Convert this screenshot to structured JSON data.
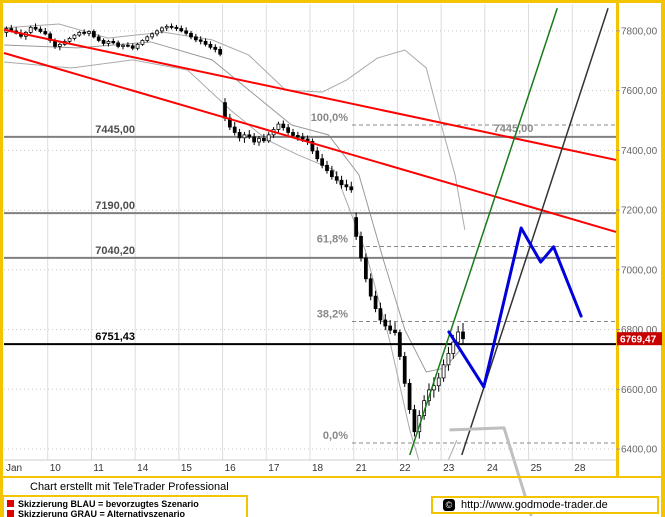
{
  "colors": {
    "frame": "#F5C400",
    "grid_v": "#DCDCDC",
    "grid_h": "#C8C8C8",
    "candle": "#000000",
    "support_gray": "#808080",
    "support_black": "#000000",
    "fib": "#888888",
    "red_trend": "#FF0000",
    "green_trend": "#1A7A1A",
    "black_trend": "#333333",
    "band": "#AAAAAA",
    "ma": "#999999",
    "scenario_blue": "#0000DD",
    "scenario_gray": "#BFBFBF",
    "badge_bg": "#C80000",
    "badge_text": "#FFFFFF",
    "axis_text": "#666666",
    "date_text": "#333333"
  },
  "chart_data": {
    "type": "candlestick",
    "title": "",
    "x_axis": {
      "labels": [
        "Jan",
        "10",
        "11",
        "14",
        "15",
        "16",
        "17",
        "18",
        "21",
        "22",
        "23",
        "24",
        "25",
        "28"
      ],
      "slots": 14
    },
    "y_axis": {
      "ticks": [
        7800,
        7600,
        7400,
        7200,
        7000,
        6800,
        6600,
        6400
      ],
      "price_top": 7870,
      "price_bottom": 6380,
      "decimal_separator": ","
    },
    "grid": true,
    "last_price": 6769.47,
    "last_price_label": "6769,47",
    "support_lines": [
      {
        "price": 7445.0,
        "label": "7445,00",
        "color_key": "support_gray",
        "width": 2,
        "extra_label": {
          "text": "7445,00",
          "x_frac": 0.8
        }
      },
      {
        "price": 7190.0,
        "label": "7190,00",
        "color_key": "support_gray",
        "width": 2
      },
      {
        "price": 7040.2,
        "label": "7040,20",
        "color_key": "support_gray",
        "width": 2
      },
      {
        "price": 6751.43,
        "label": "6751,43",
        "color_key": "support_black",
        "width": 2
      }
    ],
    "fib_levels": [
      {
        "pct_label": "100,0%",
        "price": 7485
      },
      {
        "pct_label": "61,8%",
        "price": 7078
      },
      {
        "pct_label": "38,2%",
        "price": 6827
      },
      {
        "pct_label": "0,0%",
        "price": 6420
      }
    ],
    "trendlines": [
      {
        "name": "red-channel-upper",
        "color_key": "red_trend",
        "width": 2,
        "points": [
          [
            0.0,
            7804
          ],
          [
            1.0,
            7368
          ]
        ]
      },
      {
        "name": "red-channel-lower",
        "color_key": "red_trend",
        "width": 2,
        "points": [
          [
            0.0,
            7726
          ],
          [
            1.0,
            7127
          ]
        ]
      },
      {
        "name": "green-rising",
        "color_key": "green_trend",
        "width": 1.5,
        "points": [
          [
            0.663,
            6380
          ],
          [
            0.904,
            7876
          ]
        ]
      },
      {
        "name": "black-rising",
        "color_key": "black_trend",
        "width": 1.5,
        "points": [
          [
            0.748,
            6380
          ],
          [
            0.987,
            7876
          ]
        ]
      }
    ],
    "scenarios": {
      "preferred": {
        "name": "BLAU",
        "color_key": "scenario_blue",
        "width": 3,
        "points": [
          [
            0.727,
            6792
          ],
          [
            0.784,
            6608
          ],
          [
            0.845,
            7140
          ],
          [
            0.877,
            7026
          ],
          [
            0.898,
            7077
          ],
          [
            0.943,
            6845
          ]
        ]
      },
      "alternative": {
        "name": "GRAU",
        "color_key": "scenario_gray",
        "width": 3,
        "points": [
          [
            0.73,
            6464
          ],
          [
            0.817,
            6471
          ],
          [
            0.861,
            6180
          ]
        ]
      }
    },
    "indicator_bands": {
      "upper": [
        [
          0,
          7810
        ],
        [
          0.09,
          7823
        ],
        [
          0.17,
          7776
        ],
        [
          0.26,
          7796
        ],
        [
          0.34,
          7770
        ],
        [
          0.4,
          7719
        ],
        [
          0.46,
          7602
        ],
        [
          0.52,
          7595
        ],
        [
          0.56,
          7636
        ],
        [
          0.61,
          7709
        ],
        [
          0.655,
          7736
        ],
        [
          0.69,
          7676
        ],
        [
          0.71,
          7518
        ],
        [
          0.737,
          7318
        ],
        [
          0.753,
          7134
        ]
      ],
      "middle": [
        [
          0,
          7753
        ],
        [
          0.12,
          7743
        ],
        [
          0.24,
          7763
        ],
        [
          0.34,
          7703
        ],
        [
          0.4,
          7602
        ],
        [
          0.47,
          7485
        ],
        [
          0.53,
          7452
        ],
        [
          0.58,
          7318
        ],
        [
          0.62,
          7033
        ],
        [
          0.655,
          6799
        ],
        [
          0.69,
          6658
        ],
        [
          0.72,
          6671
        ],
        [
          0.745,
          6731
        ]
      ],
      "lower": [
        [
          0,
          7696
        ],
        [
          0.11,
          7676
        ],
        [
          0.21,
          7703
        ],
        [
          0.3,
          7669
        ],
        [
          0.37,
          7535
        ],
        [
          0.43,
          7435
        ],
        [
          0.48,
          7385
        ],
        [
          0.54,
          7334
        ],
        [
          0.59,
          7067
        ],
        [
          0.63,
          6765
        ],
        [
          0.663,
          6464
        ],
        [
          0.69,
          6280
        ],
        [
          0.715,
          6310
        ],
        [
          0.74,
          6430
        ]
      ]
    },
    "candles_by_day": [
      [
        [
          7795,
          7815,
          7780,
          7808
        ],
        [
          7808,
          7820,
          7795,
          7800
        ],
        [
          7800,
          7812,
          7788,
          7792
        ],
        [
          7792,
          7805,
          7775,
          7782
        ],
        [
          7782,
          7800,
          7770,
          7795
        ],
        [
          7795,
          7818,
          7790,
          7812
        ],
        [
          7812,
          7825,
          7800,
          7806
        ],
        [
          7806,
          7815,
          7792,
          7798
        ],
        [
          7798,
          7810,
          7785,
          7790
        ]
      ],
      [
        [
          7790,
          7798,
          7760,
          7768
        ],
        [
          7768,
          7775,
          7740,
          7748
        ],
        [
          7748,
          7760,
          7735,
          7755
        ],
        [
          7755,
          7772,
          7750,
          7765
        ],
        [
          7765,
          7780,
          7758,
          7775
        ],
        [
          7775,
          7790,
          7768,
          7786
        ],
        [
          7786,
          7800,
          7780,
          7795
        ],
        [
          7795,
          7805,
          7785,
          7792
        ],
        [
          7792,
          7802,
          7782,
          7798
        ]
      ],
      [
        [
          7798,
          7805,
          7775,
          7780
        ],
        [
          7780,
          7788,
          7762,
          7768
        ],
        [
          7768,
          7775,
          7750,
          7758
        ],
        [
          7758,
          7770,
          7748,
          7765
        ],
        [
          7765,
          7775,
          7755,
          7760
        ],
        [
          7760,
          7768,
          7742,
          7748
        ],
        [
          7748,
          7758,
          7738,
          7752
        ],
        [
          7752,
          7762,
          7745,
          7750
        ],
        [
          7750,
          7758,
          7735,
          7742
        ]
      ],
      [
        [
          7742,
          7760,
          7735,
          7755
        ],
        [
          7755,
          7772,
          7750,
          7768
        ],
        [
          7768,
          7785,
          7762,
          7780
        ],
        [
          7780,
          7795,
          7772,
          7790
        ],
        [
          7790,
          7805,
          7782,
          7800
        ],
        [
          7800,
          7815,
          7792,
          7810
        ],
        [
          7810,
          7822,
          7800,
          7815
        ],
        [
          7815,
          7825,
          7805,
          7812
        ],
        [
          7812,
          7820,
          7800,
          7808
        ]
      ],
      [
        [
          7808,
          7818,
          7795,
          7800
        ],
        [
          7800,
          7812,
          7785,
          7792
        ],
        [
          7792,
          7800,
          7772,
          7780
        ],
        [
          7780,
          7790,
          7762,
          7770
        ],
        [
          7770,
          7782,
          7755,
          7765
        ],
        [
          7765,
          7775,
          7748,
          7755
        ],
        [
          7755,
          7765,
          7738,
          7745
        ],
        [
          7745,
          7755,
          7728,
          7738
        ],
        [
          7738,
          7748,
          7715,
          7722
        ]
      ],
      [
        [
          7560,
          7575,
          7498,
          7508
        ],
        [
          7508,
          7522,
          7468,
          7478
        ],
        [
          7478,
          7495,
          7450,
          7460
        ],
        [
          7460,
          7472,
          7430,
          7442
        ],
        [
          7442,
          7462,
          7425,
          7452
        ],
        [
          7452,
          7468,
          7438,
          7445
        ],
        [
          7445,
          7458,
          7418,
          7428
        ],
        [
          7428,
          7448,
          7415,
          7440
        ],
        [
          7440,
          7455,
          7425,
          7432
        ]
      ],
      [
        [
          7432,
          7462,
          7425,
          7452
        ],
        [
          7452,
          7478,
          7442,
          7470
        ],
        [
          7470,
          7496,
          7460,
          7488
        ],
        [
          7488,
          7500,
          7466,
          7476
        ],
        [
          7476,
          7488,
          7452,
          7460
        ],
        [
          7460,
          7472,
          7440,
          7450
        ],
        [
          7450,
          7462,
          7432,
          7445
        ],
        [
          7445,
          7458,
          7428,
          7438
        ],
        [
          7438,
          7450,
          7418,
          7430
        ]
      ],
      [
        [
          7430,
          7440,
          7388,
          7398
        ],
        [
          7398,
          7412,
          7362,
          7372
        ],
        [
          7372,
          7388,
          7340,
          7350
        ],
        [
          7350,
          7365,
          7322,
          7332
        ],
        [
          7332,
          7348,
          7302,
          7312
        ],
        [
          7312,
          7330,
          7288,
          7300
        ],
        [
          7300,
          7315,
          7272,
          7285
        ],
        [
          7285,
          7302,
          7265,
          7278
        ],
        [
          7278,
          7295,
          7258,
          7268
        ]
      ],
      [
        [
          7175,
          7192,
          7100,
          7112
        ],
        [
          7112,
          7128,
          7028,
          7040
        ],
        [
          7040,
          7055,
          6958,
          6970
        ],
        [
          6970,
          6988,
          6898,
          6912
        ],
        [
          6912,
          6930,
          6858,
          6870
        ],
        [
          6870,
          6890,
          6818,
          6832
        ],
        [
          6832,
          6852,
          6798,
          6812
        ],
        [
          6812,
          6832,
          6785,
          6798
        ],
        [
          6798,
          6825,
          6780,
          6790
        ]
      ],
      [
        [
          6790,
          6800,
          6698,
          6710
        ],
        [
          6710,
          6725,
          6608,
          6620
        ],
        [
          6620,
          6635,
          6518,
          6532
        ],
        [
          6532,
          6548,
          6442,
          6458
        ],
        [
          6458,
          6530,
          6435,
          6512
        ],
        [
          6512,
          6580,
          6498,
          6562
        ],
        [
          6562,
          6620,
          6545,
          6598
        ],
        [
          6598,
          6640,
          6572,
          6612
        ],
        [
          6612,
          6655,
          6592,
          6638
        ]
      ],
      [
        [
          6638,
          6700,
          6625,
          6682
        ],
        [
          6682,
          6742,
          6662,
          6720
        ],
        [
          6720,
          6782,
          6702,
          6758
        ],
        [
          6758,
          6812,
          6742,
          6792
        ],
        [
          6792,
          6822,
          6750,
          6769.47
        ]
      ]
    ]
  },
  "footer": {
    "credit": "Chart erstellt mit TeleTrader Professional"
  },
  "legend": {
    "items": [
      {
        "text": "Skizzierung BLAU = bevorzugtes Szenario"
      },
      {
        "text": "Skizzierung GRAU = Alternativszenario"
      }
    ]
  },
  "branding": {
    "copyright_symbol": "©",
    "url": "http://www.godmode-trader.de"
  }
}
